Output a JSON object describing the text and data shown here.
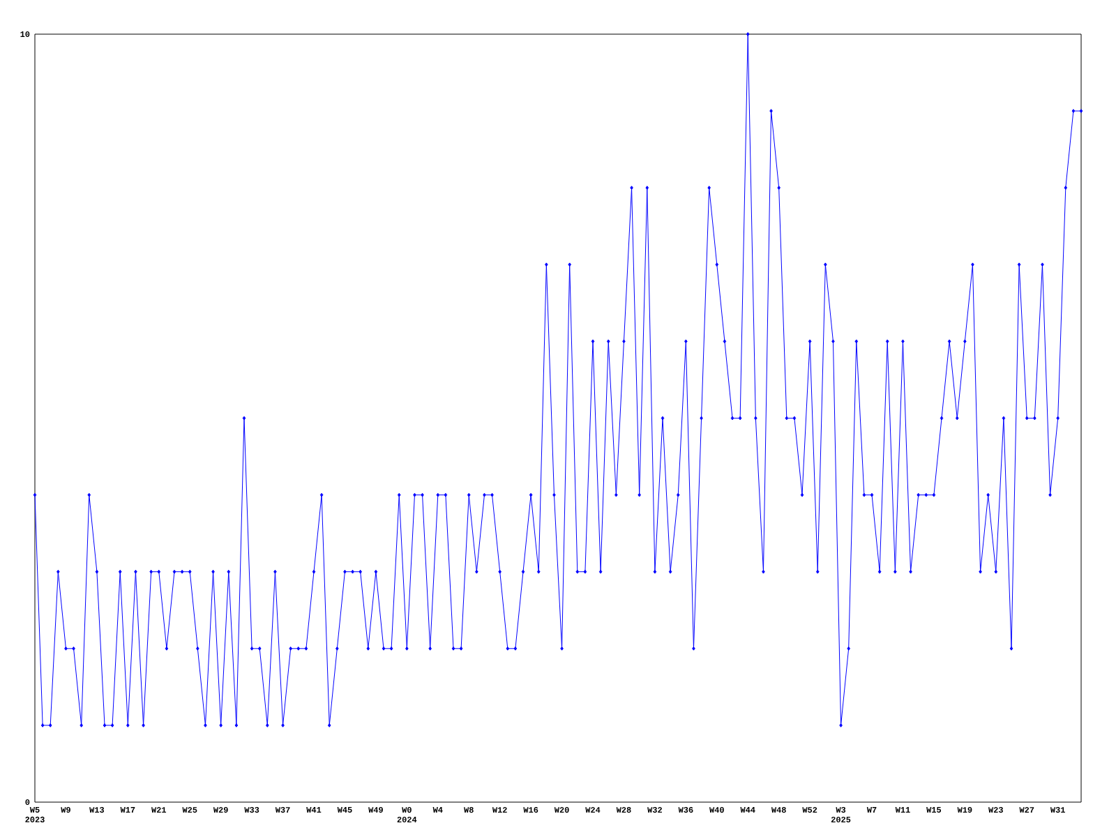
{
  "chart_data": {
    "type": "line",
    "categories": [
      "W5 2023",
      null,
      null,
      null,
      "W9",
      null,
      null,
      null,
      "W13",
      null,
      null,
      null,
      "W17",
      null,
      null,
      null,
      "W21",
      null,
      null,
      null,
      "W25",
      null,
      null,
      null,
      "W29",
      null,
      null,
      null,
      "W33",
      null,
      null,
      null,
      "W37",
      null,
      null,
      null,
      "W41",
      null,
      null,
      null,
      "W45",
      null,
      null,
      null,
      "W49",
      null,
      null,
      null,
      "W0 2024",
      null,
      null,
      null,
      "W4",
      null,
      null,
      null,
      "W8",
      null,
      null,
      null,
      "W12",
      null,
      null,
      null,
      "W16",
      null,
      null,
      null,
      "W20",
      null,
      null,
      null,
      "W24",
      null,
      null,
      null,
      "W28",
      null,
      null,
      null,
      "W32",
      null,
      null,
      null,
      "W36",
      null,
      null,
      null,
      "W40",
      null,
      null,
      null,
      "W44",
      null,
      null,
      null,
      "W48",
      null,
      null,
      null,
      "W52",
      null,
      null,
      null,
      "W3 2025",
      null,
      null,
      null,
      "W7",
      null,
      null,
      null,
      "W11",
      null,
      null,
      null,
      "W15",
      null,
      null,
      null,
      "W19",
      null,
      null,
      null,
      "W23",
      null,
      null,
      null,
      "W27",
      null,
      null,
      null,
      "W31",
      null,
      null,
      null
    ],
    "values": [
      4,
      1,
      1,
      3,
      2,
      2,
      1,
      4,
      3,
      1,
      1,
      3,
      1,
      3,
      1,
      3,
      3,
      2,
      3,
      3,
      3,
      2,
      1,
      3,
      1,
      3,
      1,
      5,
      2,
      2,
      1,
      3,
      1,
      2,
      2,
      2,
      3,
      4,
      1,
      2,
      3,
      3,
      3,
      2,
      3,
      2,
      2,
      4,
      2,
      4,
      4,
      2,
      4,
      4,
      2,
      2,
      4,
      3,
      4,
      4,
      3,
      2,
      2,
      3,
      4,
      3,
      7,
      4,
      2,
      7,
      3,
      3,
      6,
      3,
      6,
      4,
      6,
      8,
      4,
      8,
      3,
      5,
      3,
      4,
      6,
      2,
      5,
      8,
      7,
      6,
      5,
      5,
      10,
      5,
      3,
      9,
      8,
      5,
      5,
      4,
      6,
      3,
      7,
      6,
      1,
      2,
      6,
      4,
      4,
      3,
      6,
      3,
      6,
      3,
      4,
      4,
      4,
      5,
      6,
      5,
      6,
      7,
      3,
      4,
      3,
      5,
      2,
      7,
      5,
      5,
      7,
      4,
      5,
      8,
      9,
      9
    ],
    "color": "#0000ff",
    "marker": "diamond",
    "line_style": "solid",
    "ylim": [
      0,
      10
    ],
    "yticks": [
      0,
      10
    ]
  }
}
